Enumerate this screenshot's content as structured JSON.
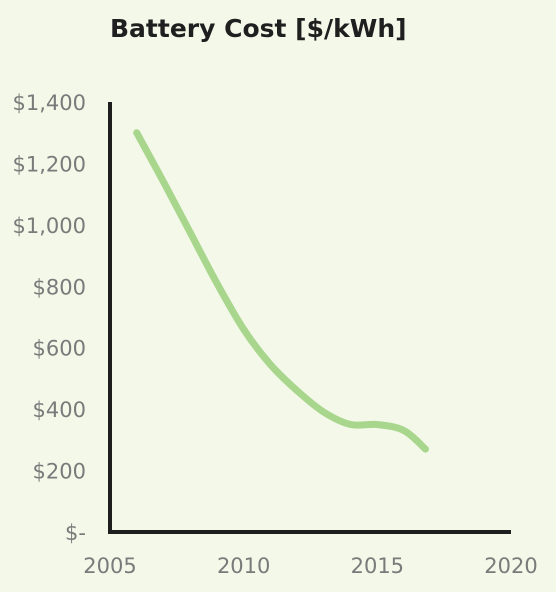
{
  "chart_data": {
    "type": "line",
    "title": "Battery Cost [$/kWh]",
    "xlabel": "",
    "ylabel": "",
    "xlim": [
      2005,
      2020
    ],
    "ylim": [
      0,
      1400
    ],
    "x_ticks": [
      2005,
      2010,
      2015,
      2020
    ],
    "x_tick_labels": [
      "2005",
      "2010",
      "2015",
      "2020"
    ],
    "y_ticks": [
      0,
      200,
      400,
      600,
      800,
      1000,
      1200,
      1400
    ],
    "y_tick_labels": [
      "$-",
      "$200",
      "$400",
      "$600",
      "$800",
      "$1,000",
      "$1,200",
      "$1,400"
    ],
    "grid": false,
    "legend": "none",
    "series": [
      {
        "color": "#a8d68c",
        "x": [
          2006,
          2007,
          2008,
          2009,
          2010,
          2011,
          2012,
          2013,
          2014,
          2015,
          2016,
          2016.8
        ],
        "y": [
          1300,
          1140,
          975,
          810,
          660,
          545,
          460,
          390,
          350,
          350,
          330,
          270
        ]
      }
    ]
  }
}
